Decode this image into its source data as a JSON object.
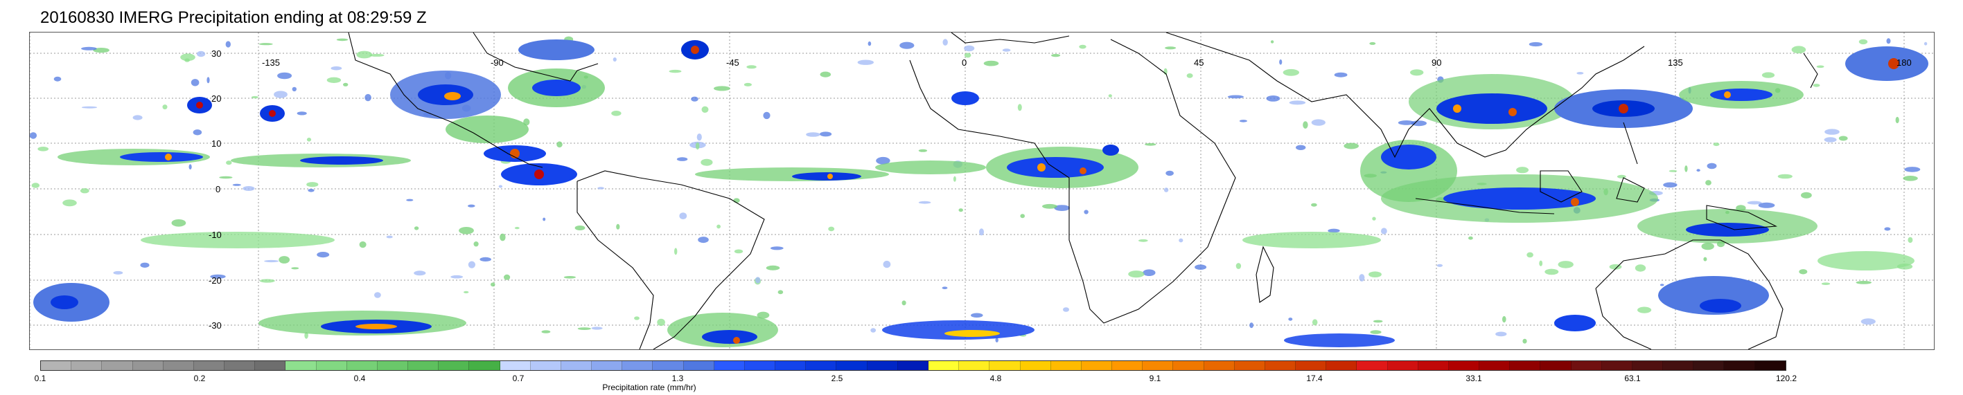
{
  "title": "20160830 IMERG Precipitation ending at 08:29:59 Z",
  "map": {
    "lon_labels": [
      "-135",
      "-90",
      "-45",
      "0",
      "45",
      "90",
      "135",
      "180"
    ],
    "lat_labels": [
      "30",
      "20",
      "10",
      "0",
      "-10",
      "-20",
      "-30"
    ],
    "background": "#ffffff",
    "coastline_color": "#000000",
    "gridline_color": "#9a9a9a"
  },
  "colorbar": {
    "label": "Precipitation rate (mm/hr)",
    "tick_labels": [
      "0.1",
      "0.2",
      "0.4",
      "0.7",
      "1.3",
      "2.5",
      "4.8",
      "9.1",
      "17.4",
      "33.1",
      "63.1",
      "120.2"
    ],
    "colors": [
      "#b4b4b4",
      "#aaaaaa",
      "#a0a0a0",
      "#969696",
      "#8c8c8c",
      "#828282",
      "#787878",
      "#6e6e6e",
      "#8ee08e",
      "#82d882",
      "#76d076",
      "#6ac86a",
      "#5ec05e",
      "#52b852",
      "#46b046",
      "#c8d8ff",
      "#b4c8fa",
      "#a0b8f5",
      "#8ca8f0",
      "#7898eb",
      "#6488e6",
      "#5078e1",
      "#2a5aff",
      "#1f4ef5",
      "#1443eb",
      "#0a38e0",
      "#0030d4",
      "#0026c6",
      "#001cb8",
      "#ffff30",
      "#ffee20",
      "#ffdd10",
      "#ffcc00",
      "#ffbb00",
      "#ffa800",
      "#ff9800",
      "#f88800",
      "#f07800",
      "#e86800",
      "#e05800",
      "#d84800",
      "#d03800",
      "#c82800",
      "#e01818",
      "#d01010",
      "#c00808",
      "#b00000",
      "#a00000",
      "#900000",
      "#800000",
      "#701010",
      "#601010",
      "#501010",
      "#441010",
      "#381010",
      "#2c0808",
      "#200404"
    ]
  }
}
